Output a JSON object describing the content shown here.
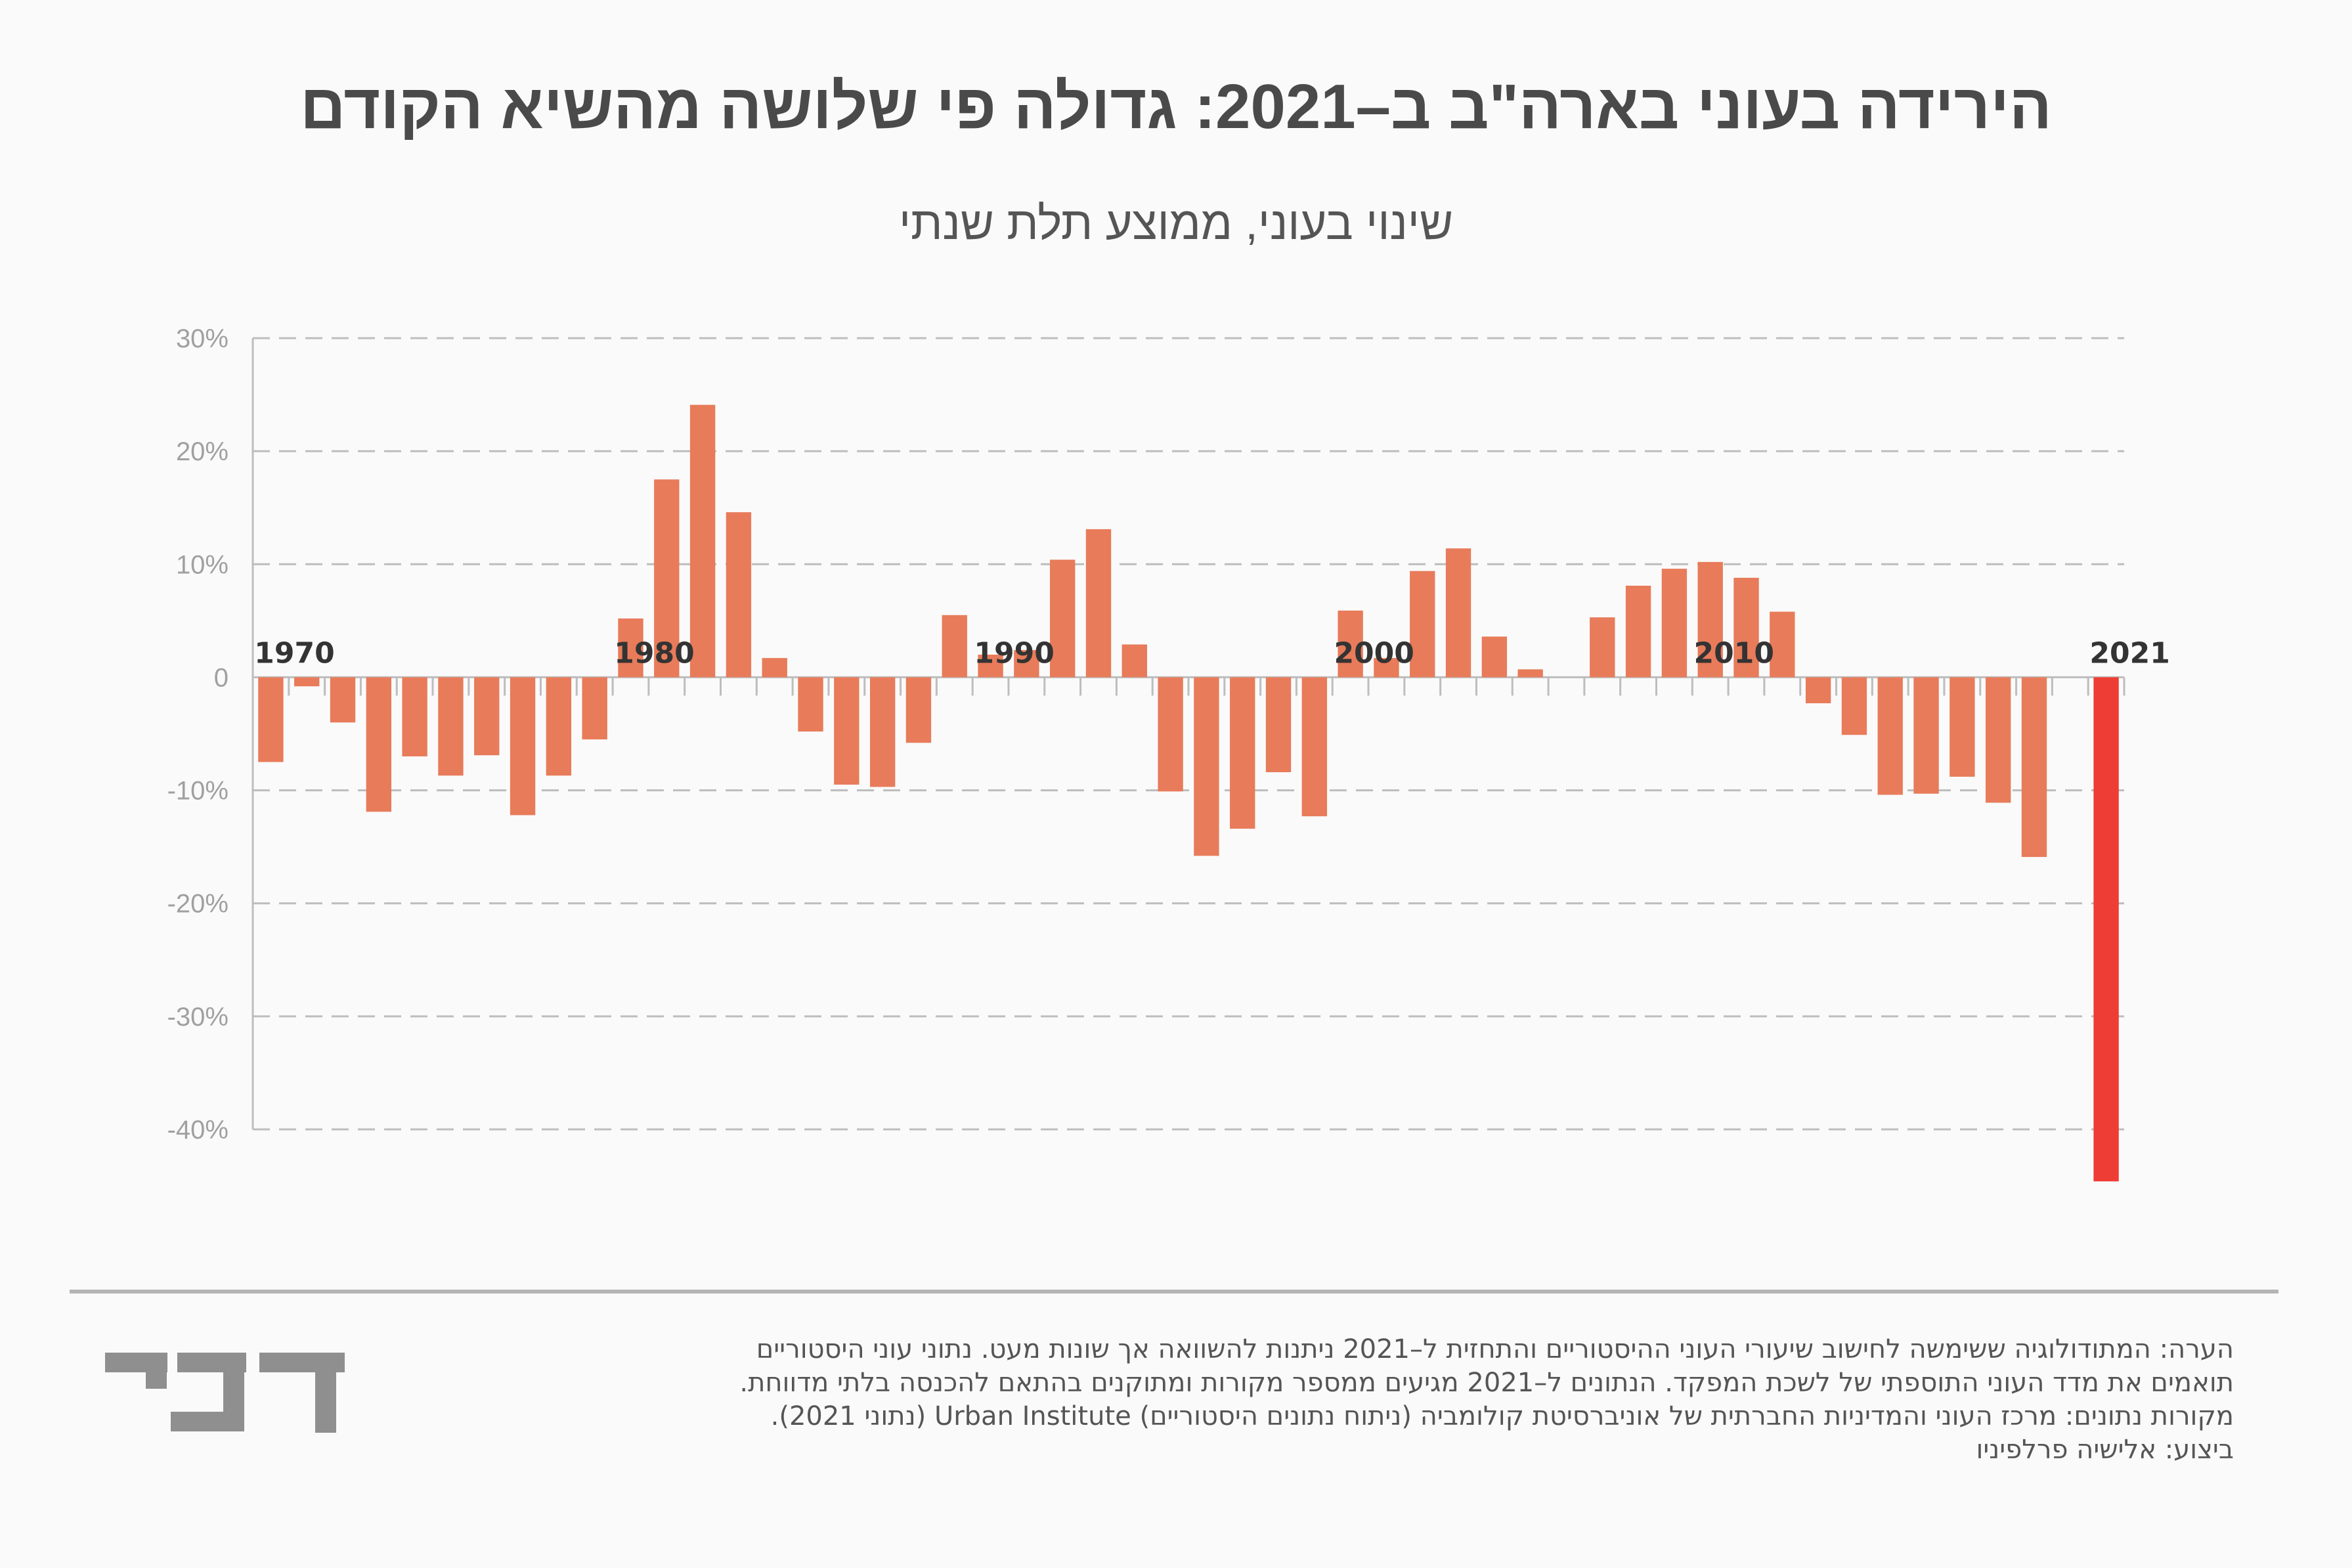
{
  "header": {
    "title": "הירידה בעוני בארה\"ב ב–2021: גדולה פי שלושה מהשיא הקודם",
    "subtitle": "שינוי בעוני, ממוצע תלת שנתי"
  },
  "colors": {
    "bar": "#e87b5a",
    "highlight": "#ee3d34",
    "grid": "#bdbdbd",
    "axis": "#bdbdbd"
  },
  "chart_data": {
    "type": "bar",
    "title": "הירידה בעוני בארה\"ב ב–2021: גדולה פי שלושה מהשיא הקודם",
    "subtitle": "שינוי בעוני, ממוצע תלת שנתי",
    "x": [
      1970,
      1971,
      1972,
      1973,
      1974,
      1975,
      1976,
      1977,
      1978,
      1979,
      1980,
      1981,
      1982,
      1983,
      1984,
      1985,
      1986,
      1987,
      1988,
      1989,
      1990,
      1991,
      1992,
      1993,
      1994,
      1995,
      1996,
      1997,
      1998,
      1999,
      2000,
      2001,
      2002,
      2003,
      2004,
      2005,
      2006,
      2007,
      2008,
      2009,
      2010,
      2011,
      2012,
      2013,
      2014,
      2015,
      2016,
      2017,
      2018,
      2019,
      2020,
      2021
    ],
    "values": [
      -7.5,
      -0.8,
      -4.0,
      -11.9,
      -7.0,
      -8.7,
      -6.9,
      -12.2,
      -8.7,
      -5.5,
      5.2,
      17.5,
      24.1,
      14.6,
      1.7,
      -4.8,
      -9.5,
      -9.7,
      -5.8,
      5.5,
      2.0,
      2.4,
      10.4,
      13.1,
      2.9,
      -10.1,
      -15.8,
      -13.4,
      -8.4,
      -12.3,
      5.9,
      1.7,
      9.4,
      11.4,
      3.6,
      0.7,
      0,
      5.3,
      8.1,
      9.6,
      10.2,
      8.8,
      5.8,
      -2.3,
      -5.1,
      -10.4,
      -10.3,
      -8.8,
      -11.1,
      -15.9,
      0,
      -44.6
    ],
    "highlight_index": 51,
    "decade_labels": [
      "1970",
      "1980",
      "1990",
      "2000",
      "2010",
      "2021"
    ],
    "decade_years": [
      1970,
      1980,
      1990,
      2000,
      2010,
      2021
    ],
    "yticks": [
      30,
      20,
      10,
      0,
      -10,
      -20,
      -30,
      -40
    ],
    "ytick_labels": [
      "30%",
      "20%",
      "10%",
      "0",
      "-10%",
      "-20%",
      "-30%",
      "-40%"
    ],
    "ylim": [
      -40,
      30
    ],
    "grid": true
  },
  "notes": {
    "line1": "הערה: המתודולוגיה ששימשה לחישוב שיעורי העוני ההיסטוריים והתחזית ל–2021 ניתנות להשוואה אך שונות מעט. נתוני עוני היסטוריים",
    "line2": "תואמים את מדד העוני התוספתי של לשכת המפקד. הנתונים ל–2021 מגיעים ממספר מקורות ומתוקנים בהתאם להכנסה בלתי מדווחת.",
    "line3": "מקורות נתונים: מרכז העוני והמדיניות החברתית של אוניברסיטת קולומביה (ניתוח נתונים היסטוריים) Urban Institute (נתוני 2021).",
    "line4": "ביצוע: אלישיה פרלפיניו"
  },
  "logo": {
    "name": "davar-logo",
    "text": "דבר"
  }
}
